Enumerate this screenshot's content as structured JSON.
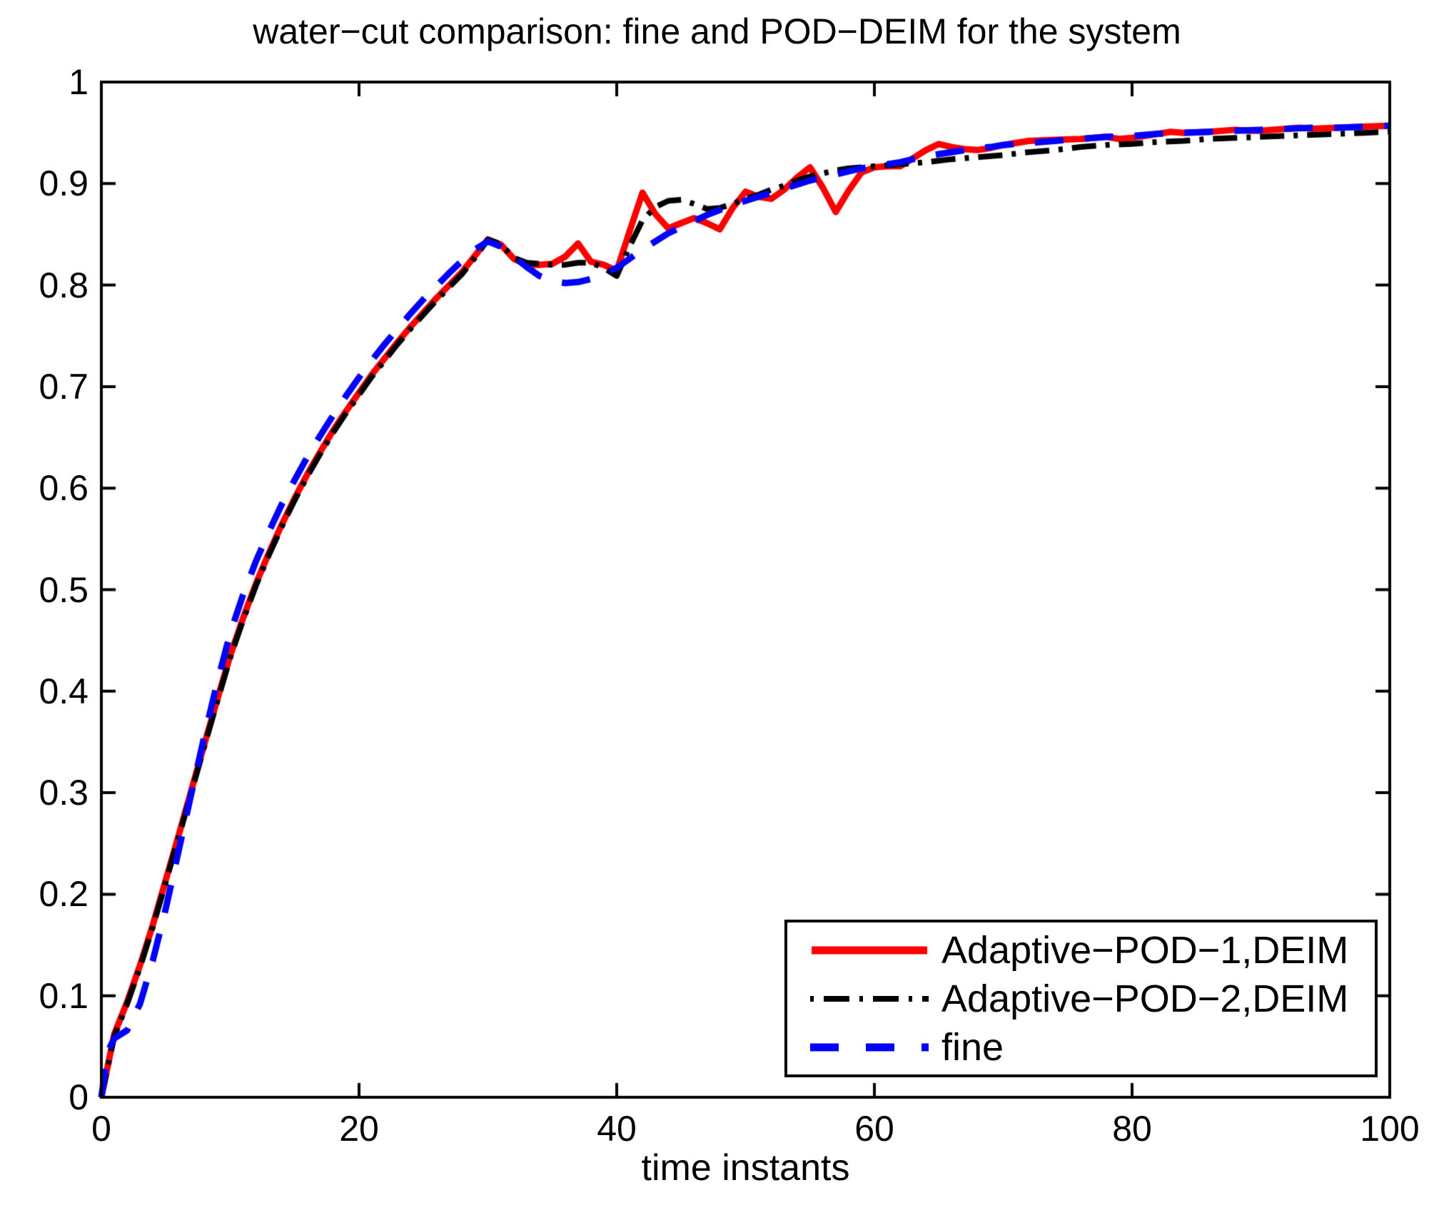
{
  "chart_data": {
    "type": "line",
    "title": "water−cut comparison: fine and POD−DEIM for the system",
    "xlabel": "time instants",
    "ylabel": "",
    "xlim": [
      0,
      100
    ],
    "ylim": [
      0,
      1
    ],
    "x_ticks": [
      0,
      20,
      40,
      60,
      80,
      100
    ],
    "x_tick_labels": [
      "0",
      "20",
      "40",
      "60",
      "80",
      "100"
    ],
    "y_ticks": [
      0,
      0.1,
      0.2,
      0.3,
      0.4,
      0.5,
      0.6,
      0.7,
      0.8,
      0.9,
      1
    ],
    "y_tick_labels": [
      "0",
      "0.1",
      "0.2",
      "0.3",
      "0.4",
      "0.5",
      "0.6",
      "0.7",
      "0.8",
      "0.9",
      "1"
    ],
    "grid": false,
    "legend_position": "lower right",
    "series": [
      {
        "name": "Adaptive−POD−1,DEIM",
        "color": "#ff0000",
        "style": "solid",
        "points": [
          [
            0,
            0
          ],
          [
            1,
            0.062
          ],
          [
            2,
            0.094
          ],
          [
            3,
            0.13
          ],
          [
            4,
            0.17
          ],
          [
            5,
            0.214
          ],
          [
            6,
            0.258
          ],
          [
            7,
            0.303
          ],
          [
            8,
            0.348
          ],
          [
            9,
            0.392
          ],
          [
            10,
            0.435
          ],
          [
            11,
            0.472
          ],
          [
            12,
            0.506
          ],
          [
            13,
            0.536
          ],
          [
            14,
            0.564
          ],
          [
            15,
            0.59
          ],
          [
            16,
            0.614
          ],
          [
            17,
            0.636
          ],
          [
            18,
            0.657
          ],
          [
            19,
            0.676
          ],
          [
            20,
            0.694
          ],
          [
            21,
            0.712
          ],
          [
            22,
            0.728
          ],
          [
            23,
            0.744
          ],
          [
            24,
            0.759
          ],
          [
            25,
            0.773
          ],
          [
            26,
            0.787
          ],
          [
            27,
            0.8
          ],
          [
            28,
            0.813
          ],
          [
            29,
            0.829
          ],
          [
            30,
            0.845
          ],
          [
            31,
            0.84
          ],
          [
            32,
            0.826
          ],
          [
            33,
            0.82
          ],
          [
            34,
            0.82
          ],
          [
            35,
            0.821
          ],
          [
            36,
            0.828
          ],
          [
            37,
            0.841
          ],
          [
            38,
            0.823
          ],
          [
            39,
            0.82
          ],
          [
            40,
            0.814
          ],
          [
            41,
            0.853
          ],
          [
            42,
            0.891
          ],
          [
            43,
            0.87
          ],
          [
            44,
            0.856
          ],
          [
            45,
            0.861
          ],
          [
            46,
            0.866
          ],
          [
            47,
            0.861
          ],
          [
            48,
            0.855
          ],
          [
            49,
            0.876
          ],
          [
            50,
            0.892
          ],
          [
            51,
            0.887
          ],
          [
            52,
            0.885
          ],
          [
            53,
            0.894
          ],
          [
            54,
            0.906
          ],
          [
            55,
            0.916
          ],
          [
            56,
            0.896
          ],
          [
            57,
            0.872
          ],
          [
            58,
            0.893
          ],
          [
            59,
            0.911
          ],
          [
            60,
            0.916
          ],
          [
            61,
            0.917
          ],
          [
            62,
            0.917
          ],
          [
            63,
            0.925
          ],
          [
            64,
            0.933
          ],
          [
            65,
            0.939
          ],
          [
            66,
            0.936
          ],
          [
            67,
            0.934
          ],
          [
            68,
            0.933
          ],
          [
            69,
            0.935
          ],
          [
            70,
            0.938
          ],
          [
            72,
            0.942
          ],
          [
            74,
            0.943
          ],
          [
            76,
            0.944
          ],
          [
            78,
            0.946
          ],
          [
            79,
            0.944
          ],
          [
            80,
            0.945
          ],
          [
            82,
            0.949
          ],
          [
            83,
            0.951
          ],
          [
            84,
            0.95
          ],
          [
            86,
            0.951
          ],
          [
            88,
            0.953
          ],
          [
            89,
            0.952
          ],
          [
            90,
            0.952
          ],
          [
            92,
            0.954
          ],
          [
            93,
            0.955
          ],
          [
            94,
            0.954
          ],
          [
            96,
            0.955
          ],
          [
            98,
            0.956
          ],
          [
            100,
            0.957
          ]
        ]
      },
      {
        "name": "Adaptive−POD−2,DEIM",
        "color": "#000000",
        "style": "dash-dot",
        "points": [
          [
            0,
            0
          ],
          [
            1,
            0.06
          ],
          [
            2,
            0.092
          ],
          [
            3,
            0.128
          ],
          [
            4,
            0.168
          ],
          [
            5,
            0.212
          ],
          [
            6,
            0.256
          ],
          [
            7,
            0.301
          ],
          [
            8,
            0.346
          ],
          [
            9,
            0.39
          ],
          [
            10,
            0.433
          ],
          [
            11,
            0.47
          ],
          [
            12,
            0.504
          ],
          [
            13,
            0.534
          ],
          [
            14,
            0.562
          ],
          [
            15,
            0.588
          ],
          [
            16,
            0.612
          ],
          [
            17,
            0.634
          ],
          [
            18,
            0.655
          ],
          [
            19,
            0.674
          ],
          [
            20,
            0.692
          ],
          [
            21,
            0.71
          ],
          [
            22,
            0.726
          ],
          [
            23,
            0.742
          ],
          [
            24,
            0.757
          ],
          [
            25,
            0.771
          ],
          [
            26,
            0.785
          ],
          [
            27,
            0.798
          ],
          [
            28,
            0.811
          ],
          [
            29,
            0.827
          ],
          [
            30,
            0.845
          ],
          [
            31,
            0.84
          ],
          [
            32,
            0.827
          ],
          [
            33,
            0.822
          ],
          [
            34,
            0.821
          ],
          [
            35,
            0.82
          ],
          [
            36,
            0.82
          ],
          [
            37,
            0.822
          ],
          [
            38,
            0.822
          ],
          [
            39,
            0.817
          ],
          [
            40,
            0.809
          ],
          [
            41,
            0.838
          ],
          [
            42,
            0.864
          ],
          [
            43,
            0.877
          ],
          [
            44,
            0.883
          ],
          [
            45,
            0.884
          ],
          [
            46,
            0.88
          ],
          [
            47,
            0.875
          ],
          [
            48,
            0.876
          ],
          [
            49,
            0.88
          ],
          [
            50,
            0.885
          ],
          [
            51,
            0.889
          ],
          [
            52,
            0.894
          ],
          [
            53,
            0.898
          ],
          [
            54,
            0.903
          ],
          [
            55,
            0.907
          ],
          [
            56,
            0.91
          ],
          [
            57,
            0.913
          ],
          [
            58,
            0.915
          ],
          [
            59,
            0.916
          ],
          [
            60,
            0.917
          ],
          [
            62,
            0.919
          ],
          [
            64,
            0.921
          ],
          [
            66,
            0.924
          ],
          [
            68,
            0.926
          ],
          [
            70,
            0.928
          ],
          [
            72,
            0.931
          ],
          [
            74,
            0.933
          ],
          [
            76,
            0.936
          ],
          [
            78,
            0.938
          ],
          [
            80,
            0.939
          ],
          [
            82,
            0.941
          ],
          [
            84,
            0.942
          ],
          [
            86,
            0.944
          ],
          [
            88,
            0.945
          ],
          [
            90,
            0.946
          ],
          [
            92,
            0.947
          ],
          [
            94,
            0.948
          ],
          [
            96,
            0.949
          ],
          [
            98,
            0.95
          ],
          [
            100,
            0.951
          ]
        ]
      },
      {
        "name": "fine",
        "color": "#0000ff",
        "style": "dashed",
        "points": [
          [
            0,
            0
          ],
          [
            0.5,
            0.045
          ],
          [
            1,
            0.058
          ],
          [
            2,
            0.066
          ],
          [
            3,
            0.092
          ],
          [
            4,
            0.135
          ],
          [
            5,
            0.186
          ],
          [
            6,
            0.243
          ],
          [
            7,
            0.3
          ],
          [
            8,
            0.356
          ],
          [
            9,
            0.409
          ],
          [
            10,
            0.457
          ],
          [
            11,
            0.495
          ],
          [
            12,
            0.528
          ],
          [
            13,
            0.557
          ],
          [
            14,
            0.584
          ],
          [
            15,
            0.608
          ],
          [
            16,
            0.631
          ],
          [
            17,
            0.652
          ],
          [
            18,
            0.672
          ],
          [
            19,
            0.691
          ],
          [
            20,
            0.709
          ],
          [
            21,
            0.726
          ],
          [
            22,
            0.742
          ],
          [
            23,
            0.757
          ],
          [
            24,
            0.772
          ],
          [
            25,
            0.786
          ],
          [
            26,
            0.799
          ],
          [
            27,
            0.812
          ],
          [
            28,
            0.824
          ],
          [
            29,
            0.835
          ],
          [
            30,
            0.843
          ],
          [
            31,
            0.838
          ],
          [
            32,
            0.828
          ],
          [
            33,
            0.818
          ],
          [
            34,
            0.809
          ],
          [
            35,
            0.804
          ],
          [
            36,
            0.802
          ],
          [
            37,
            0.803
          ],
          [
            38,
            0.806
          ],
          [
            39,
            0.811
          ],
          [
            40,
            0.817
          ],
          [
            41,
            0.826
          ],
          [
            42,
            0.835
          ],
          [
            43,
            0.843
          ],
          [
            44,
            0.851
          ],
          [
            45,
            0.857
          ],
          [
            46,
            0.863
          ],
          [
            47,
            0.869
          ],
          [
            48,
            0.874
          ],
          [
            49,
            0.879
          ],
          [
            50,
            0.883
          ],
          [
            51,
            0.887
          ],
          [
            52,
            0.891
          ],
          [
            53,
            0.895
          ],
          [
            54,
            0.899
          ],
          [
            55,
            0.903
          ],
          [
            56,
            0.906
          ],
          [
            57,
            0.909
          ],
          [
            58,
            0.912
          ],
          [
            59,
            0.915
          ],
          [
            60,
            0.917
          ],
          [
            61,
            0.919
          ],
          [
            62,
            0.921
          ],
          [
            63,
            0.924
          ],
          [
            64,
            0.927
          ],
          [
            65,
            0.929
          ],
          [
            66,
            0.931
          ],
          [
            67,
            0.933
          ],
          [
            68,
            0.935
          ],
          [
            69,
            0.936
          ],
          [
            70,
            0.938
          ],
          [
            72,
            0.94
          ],
          [
            74,
            0.942
          ],
          [
            76,
            0.944
          ],
          [
            78,
            0.946
          ],
          [
            80,
            0.947
          ],
          [
            82,
            0.949
          ],
          [
            84,
            0.95
          ],
          [
            86,
            0.951
          ],
          [
            88,
            0.952
          ],
          [
            90,
            0.953
          ],
          [
            92,
            0.954
          ],
          [
            94,
            0.955
          ],
          [
            96,
            0.955
          ],
          [
            98,
            0.956
          ],
          [
            100,
            0.957
          ]
        ]
      }
    ]
  },
  "legend": {
    "entries": [
      {
        "label": "Adaptive−POD−1,DEIM"
      },
      {
        "label": "Adaptive−POD−2,DEIM"
      },
      {
        "label": "fine"
      }
    ]
  },
  "colors": {
    "series_red": "#ff0000",
    "series_black": "#000000",
    "series_blue": "#0000ff",
    "axis": "#000000",
    "background": "#ffffff"
  }
}
